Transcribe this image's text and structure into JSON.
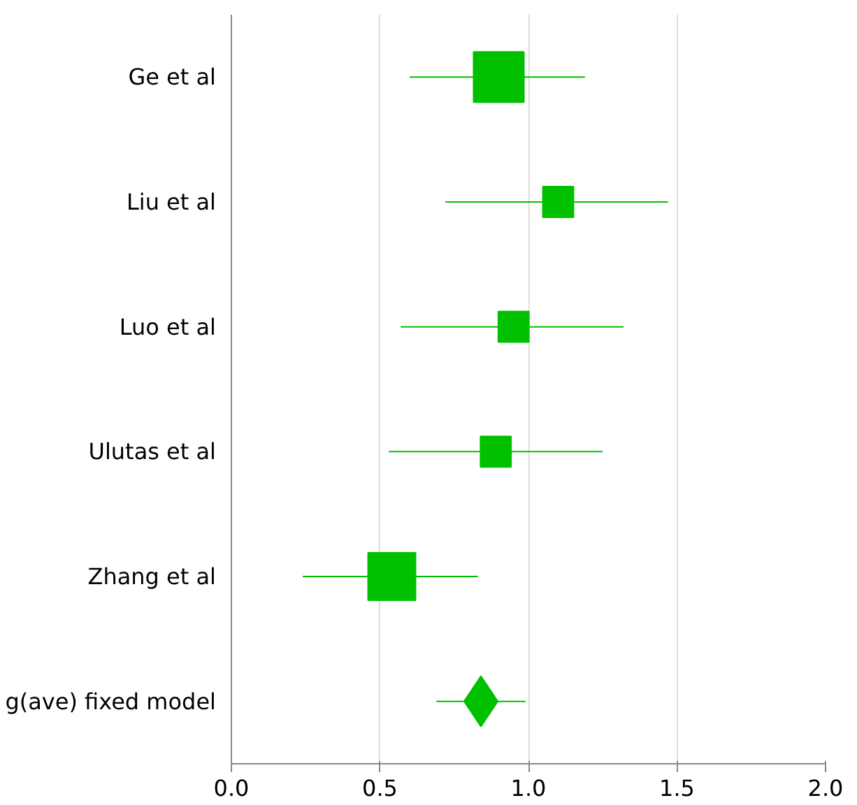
{
  "chart_data": {
    "type": "bubble",
    "orientation": "horizontal",
    "categories": [
      "Ge et al",
      "Liu et al",
      "Luo et al",
      "Ulutas et al",
      "Zhang et al",
      "g(ave) fixed model"
    ],
    "series": [
      {
        "marker": "square",
        "color": "#00c000",
        "values": [
          0.9,
          1.1,
          0.95,
          0.89,
          0.54,
          null
        ],
        "sizes": [
          1,
          0.37,
          0.37,
          0.37,
          0.89,
          null
        ],
        "errors": [
          [
            0.6,
            1.19
          ],
          [
            0.72,
            1.47
          ],
          [
            0.57,
            1.32
          ],
          [
            0.53,
            1.25
          ],
          [
            0.24,
            0.83
          ],
          null
        ]
      },
      {
        "type": "scatter",
        "marker": "diamond",
        "color": "#00c000",
        "values": [
          null,
          null,
          null,
          null,
          null,
          0.84
        ],
        "errors": [
          null,
          null,
          null,
          null,
          null,
          [
            0.69,
            0.99
          ]
        ]
      }
    ],
    "xlim": [
      0,
      2
    ],
    "xticks": [
      {
        "value": 0,
        "label": "0.0"
      },
      {
        "value": 0.5,
        "label": "0.5"
      },
      {
        "value": 1,
        "label": "1.0"
      },
      {
        "value": 1.5,
        "label": "1.5"
      },
      {
        "value": 2,
        "label": "2.0"
      }
    ],
    "grid": "x"
  }
}
